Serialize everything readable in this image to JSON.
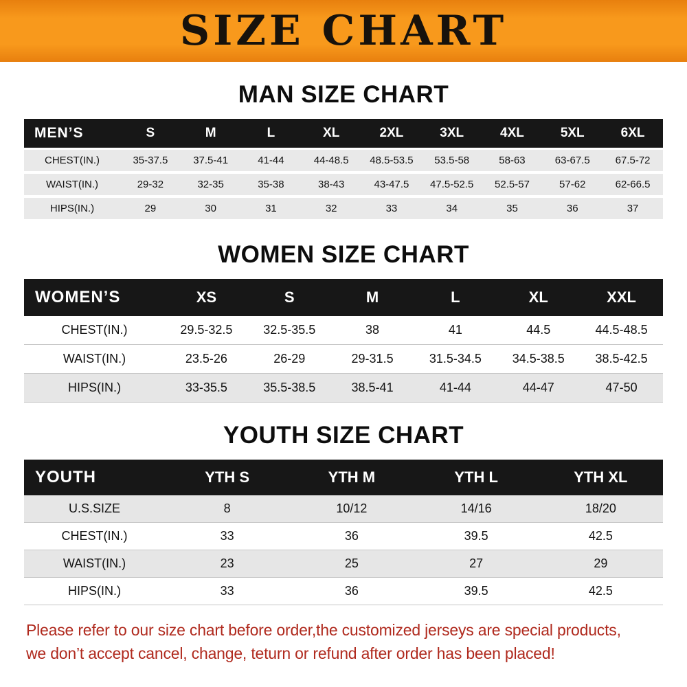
{
  "banner": {
    "title": "SIZE CHART",
    "bg_color": "#f8991c",
    "text_color": "#17120c"
  },
  "chart_data": [
    {
      "type": "table",
      "title": "MAN SIZE CHART",
      "header_label": "MEN’S",
      "columns": [
        "S",
        "M",
        "L",
        "XL",
        "2XL",
        "3XL",
        "4XL",
        "5XL",
        "6XL"
      ],
      "rows": [
        {
          "label": "CHEST(IN.)",
          "values": [
            "35-37.5",
            "37.5-41",
            "41-44",
            "44-48.5",
            "48.5-53.5",
            "53.5-58",
            "58-63",
            "63-67.5",
            "67.5-72"
          ]
        },
        {
          "label": "WAIST(IN.)",
          "values": [
            "29-32",
            "32-35",
            "35-38",
            "38-43",
            "43-47.5",
            "47.5-52.5",
            "52.5-57",
            "57-62",
            "62-66.5"
          ]
        },
        {
          "label": "HIPS(IN.)",
          "values": [
            "29",
            "30",
            "31",
            "32",
            "33",
            "34",
            "35",
            "36",
            "37"
          ]
        }
      ]
    },
    {
      "type": "table",
      "title": "WOMEN SIZE CHART",
      "header_label": "WOMEN’S",
      "columns": [
        "XS",
        "S",
        "M",
        "L",
        "XL",
        "XXL"
      ],
      "rows": [
        {
          "label": "CHEST(IN.)",
          "values": [
            "29.5-32.5",
            "32.5-35.5",
            "38",
            "41",
            "44.5",
            "44.5-48.5"
          ]
        },
        {
          "label": "WAIST(IN.)",
          "values": [
            "23.5-26",
            "26-29",
            "29-31.5",
            "31.5-34.5",
            "34.5-38.5",
            "38.5-42.5"
          ]
        },
        {
          "label": "HIPS(IN.)",
          "values": [
            "33-35.5",
            "35.5-38.5",
            "38.5-41",
            "41-44",
            "44-47",
            "47-50"
          ]
        }
      ]
    },
    {
      "type": "table",
      "title": "YOUTH SIZE CHART",
      "header_label": "YOUTH",
      "columns": [
        "YTH S",
        "YTH M",
        "YTH L",
        "YTH XL"
      ],
      "rows": [
        {
          "label": "U.S.SIZE",
          "values": [
            "8",
            "10/12",
            "14/16",
            "18/20"
          ]
        },
        {
          "label": "CHEST(IN.)",
          "values": [
            "33",
            "36",
            "39.5",
            "42.5"
          ]
        },
        {
          "label": "WAIST(IN.)",
          "values": [
            "23",
            "25",
            "27",
            "29"
          ]
        },
        {
          "label": "HIPS(IN.)",
          "values": [
            "33",
            "36",
            "39.5",
            "42.5"
          ]
        }
      ]
    }
  ],
  "footer": {
    "line1": "Please refer to our size chart before order,the customized jerseys are special products,",
    "line2": "we don’t accept cancel, change, teturn or refund after order has been placed!",
    "text_color": "#b02a1e"
  }
}
